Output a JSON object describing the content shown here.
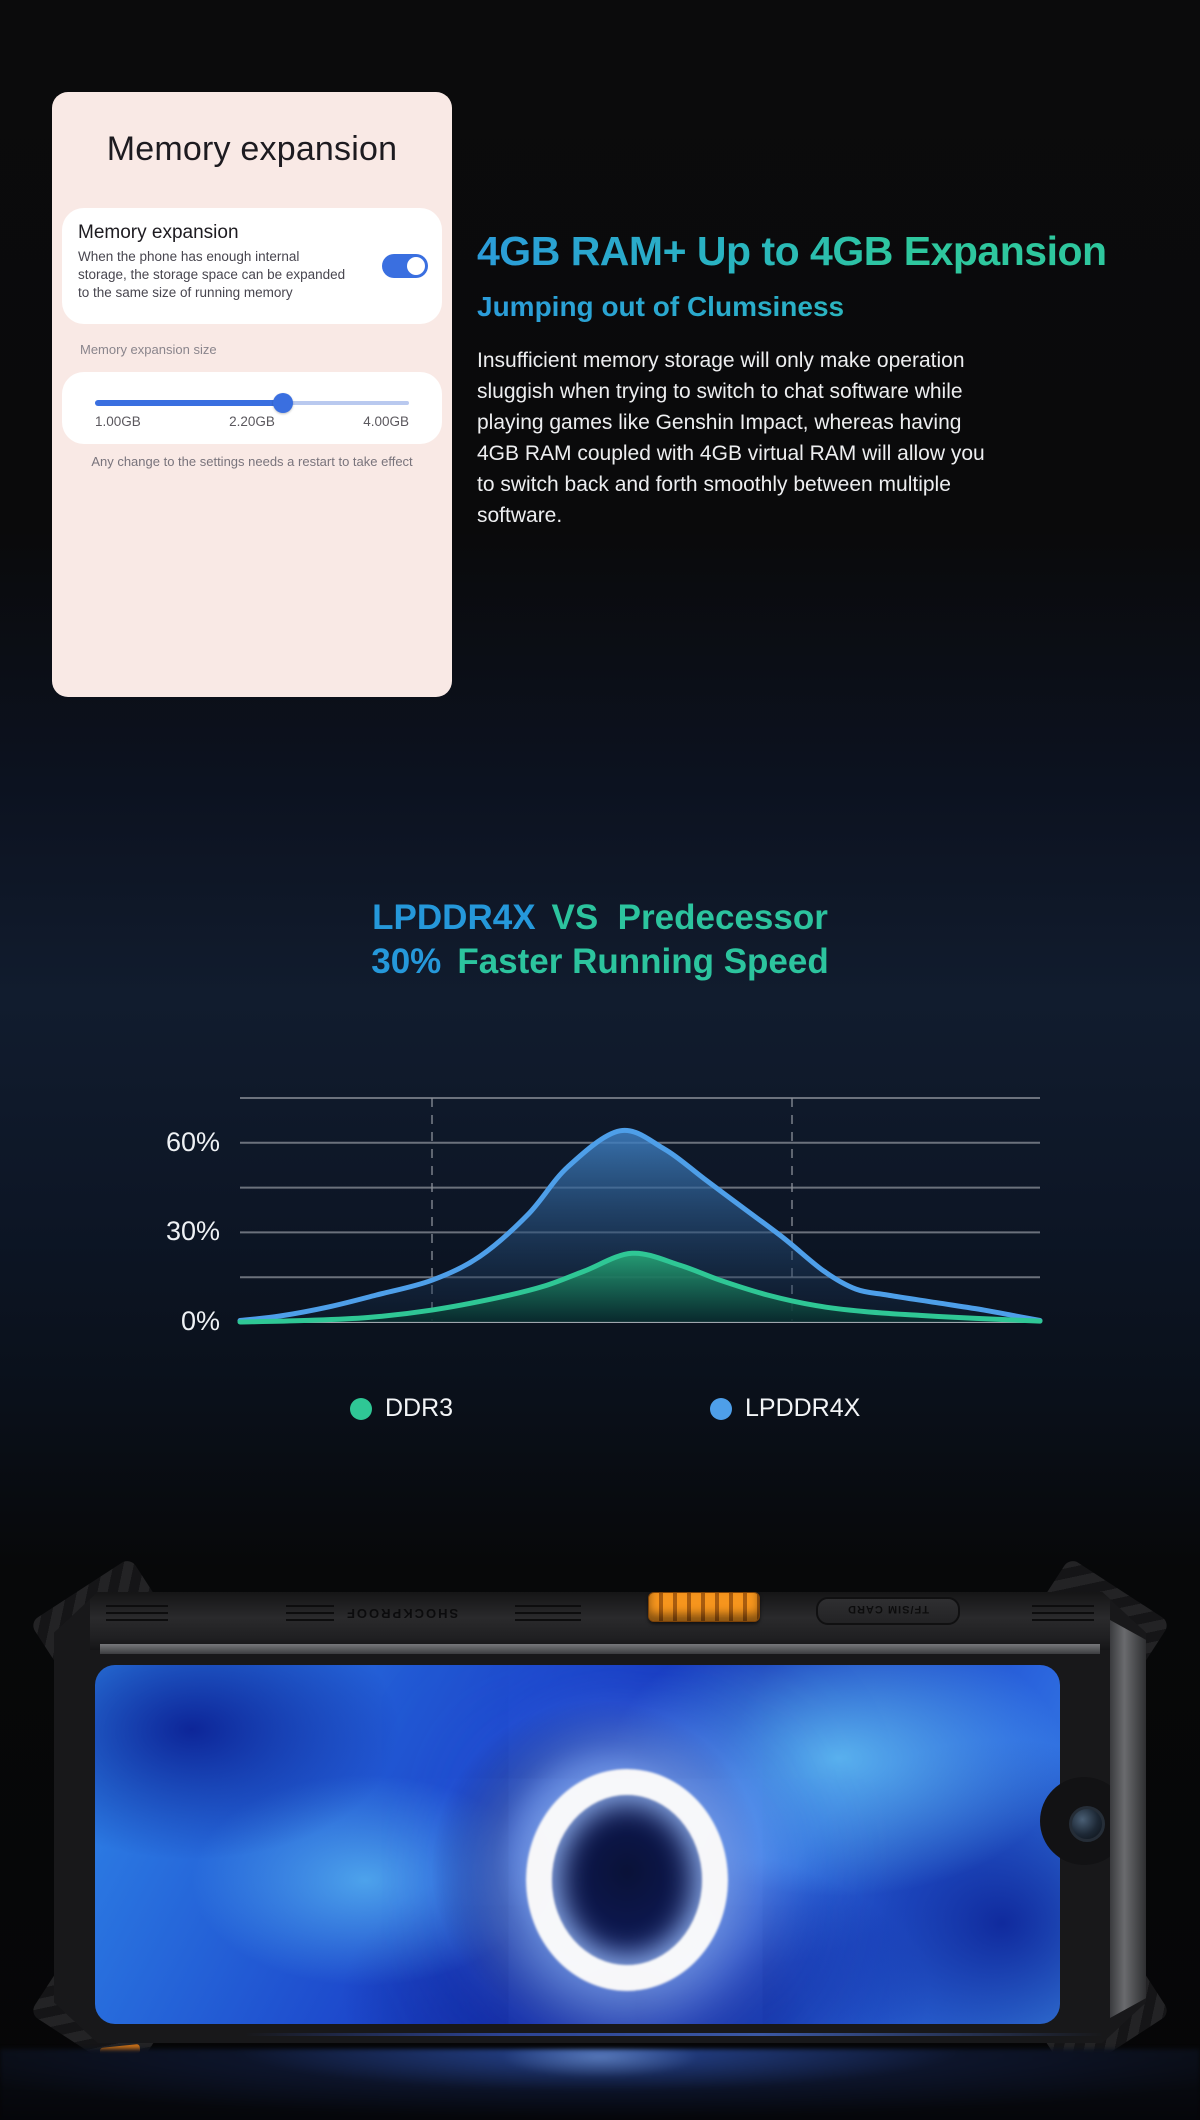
{
  "settings_card": {
    "title": "Memory expansion",
    "toggle_row": {
      "heading": "Memory expansion",
      "description": "When the phone has enough internal storage, the storage space can be expanded to the same size of running memory",
      "toggle_on": true
    },
    "size_label": "Memory expansion size",
    "slider": {
      "min_label": "1.00GB",
      "current_label": "2.20GB",
      "max_label": "4.00GB",
      "value_percent": 60
    },
    "footnote": "Any change to the settings needs a restart to take effect"
  },
  "hero": {
    "title": "4GB RAM+ Up to 4GB Expansion",
    "subtitle": "Jumping out of Clumsiness",
    "body": "Insufficient memory storage will only make operation sluggish when trying to switch to chat software while playing games like Genshin Impact, whereas having 4GB RAM coupled with 4GB virtual RAM will allow you to switch back and forth smoothly between multiple software."
  },
  "chart_section": {
    "title_l1_highlight": "LPDDR4X",
    "title_l1_rest": "VS  Predecessor",
    "title_l2_highlight": "30%",
    "title_l2_rest": "Faster Running Speed"
  },
  "chart_data": {
    "type": "area",
    "title": "LPDDR4X VS Predecessor",
    "subtitle": "30% Faster Running Speed",
    "ylim": [
      0,
      75
    ],
    "gridline_step": 15,
    "grid": true,
    "ytick_values": [
      0,
      30,
      60
    ],
    "ytick_labels": [
      "0%",
      "30%",
      "60%"
    ],
    "legend_position": "bottom",
    "x_unit": "percent_of_plot_width",
    "vline_x_percent": [
      24,
      69
    ],
    "series": [
      {
        "name": "DDR3",
        "color": "#2fc795",
        "fill_top": "rgba(38,165,120,0.92)",
        "fill_bottom": "rgba(8,44,46,0.85)",
        "x": [
          0,
          8,
          16,
          24,
          32,
          38,
          43,
          49,
          55,
          60,
          66,
          72,
          78,
          85,
          92,
          100
        ],
        "values": [
          0,
          0.5,
          1.5,
          4,
          8,
          12,
          17,
          23,
          19,
          14,
          9,
          5.5,
          3.5,
          2.2,
          1.2,
          0.3
        ]
      },
      {
        "name": "LPDDR4X",
        "color": "#4e9fe9",
        "fill_top": "rgba(64,130,198,0.85)",
        "fill_bottom": "rgba(16,36,62,0.30)",
        "x": [
          0,
          5,
          11,
          17,
          24,
          30,
          36,
          41,
          47.5,
          53,
          58,
          63,
          68,
          73,
          77,
          81,
          87,
          93,
          97,
          100
        ],
        "values": [
          0.5,
          2,
          5,
          9,
          14,
          22,
          36,
          52,
          64,
          58,
          48,
          38,
          28,
          17,
          11,
          9,
          6.5,
          4,
          2,
          0.5
        ]
      }
    ]
  },
  "phone": {
    "top_edge_text_left": "SHOCKPROOF",
    "top_edge_text_right": "TF/SIM CARD"
  },
  "colors": {
    "accent_blue": "#2598da",
    "accent_teal": "#2cc49e",
    "toggle_blue": "#3a6fe0",
    "card_pink": "#f9e9e5"
  }
}
